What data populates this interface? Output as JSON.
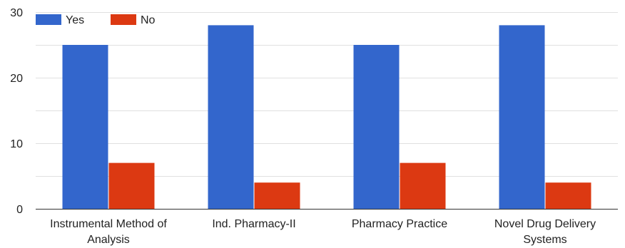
{
  "colors": {
    "yes": "#3366cc",
    "no": "#dc3912"
  },
  "chart_data": {
    "type": "bar",
    "categories": [
      [
        "Instrumental Method of",
        "Analysis"
      ],
      [
        "Ind. Pharmacy-II"
      ],
      [
        "Pharmacy Practice"
      ],
      [
        "Novel Drug Delivery",
        "Systems"
      ]
    ],
    "series": [
      {
        "name": "Yes",
        "values": [
          25,
          28,
          25,
          28
        ]
      },
      {
        "name": "No",
        "values": [
          7,
          4,
          7,
          4
        ]
      }
    ],
    "yticks": [
      0,
      10,
      20,
      30
    ],
    "ylim": [
      0,
      30
    ],
    "grid": true,
    "legend": "top-left",
    "title": "",
    "xlabel": "",
    "ylabel": ""
  }
}
